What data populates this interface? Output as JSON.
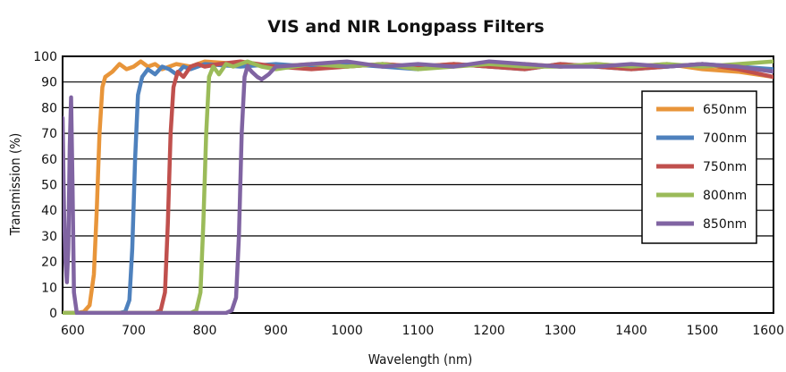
{
  "chart_data": {
    "type": "line",
    "title": "VIS and NIR Longpass Filters",
    "xlabel": "Wavelength (nm)",
    "ylabel": "Transmission (%)",
    "xlim": [
      600,
      1600
    ],
    "ylim": [
      0,
      100
    ],
    "xticks": [
      600,
      700,
      800,
      900,
      1000,
      1100,
      1200,
      1300,
      1400,
      1500,
      1600
    ],
    "xtick_labels": [
      "600",
      "700",
      "800",
      "900",
      "1000",
      "1100",
      "1200",
      "1300",
      "1400",
      "1500",
      "1600"
    ],
    "yticks": [
      0,
      10,
      20,
      30,
      40,
      50,
      60,
      70,
      80,
      90,
      100
    ],
    "ytick_labels": [
      "0",
      "10",
      "20",
      "30",
      "40",
      "50",
      "60",
      "70",
      "80",
      "90",
      "100"
    ],
    "grid": "horizontal",
    "legend_position": "right",
    "series": [
      {
        "name": "650nm",
        "color": "#E8953A",
        "x": [
          600,
          620,
          630,
          638,
          644,
          648,
          652,
          656,
          660,
          670,
          680,
          690,
          700,
          710,
          720,
          730,
          740,
          760,
          780,
          800,
          850,
          900,
          950,
          1000,
          1050,
          1100,
          1150,
          1200,
          1250,
          1300,
          1350,
          1400,
          1450,
          1500,
          1550,
          1600
        ],
        "y": [
          0,
          0,
          0.5,
          3,
          15,
          40,
          70,
          88,
          92,
          94,
          97,
          95,
          96,
          98,
          96,
          97,
          95,
          97,
          96,
          98,
          97,
          96,
          97,
          96,
          97,
          96,
          97,
          96,
          97,
          96,
          97,
          96,
          97,
          95,
          94,
          92
        ]
      },
      {
        "name": "700nm",
        "color": "#4E81BD",
        "x": [
          600,
          650,
          680,
          688,
          694,
          698,
          702,
          706,
          712,
          720,
          730,
          740,
          750,
          760,
          770,
          780,
          800,
          850,
          900,
          950,
          1000,
          1050,
          1100,
          1150,
          1200,
          1250,
          1300,
          1350,
          1400,
          1450,
          1500,
          1550,
          1600
        ],
        "y": [
          0,
          0,
          0,
          0.5,
          5,
          25,
          60,
          85,
          92,
          95,
          93,
          96,
          95,
          93,
          96,
          95,
          97,
          96,
          97,
          96,
          97,
          96,
          95,
          97,
          96,
          95,
          97,
          96,
          95,
          96,
          97,
          96,
          95
        ]
      },
      {
        "name": "750nm",
        "color": "#C0504D",
        "x": [
          600,
          700,
          730,
          738,
          744,
          748,
          752,
          756,
          762,
          770,
          780,
          790,
          800,
          820,
          850,
          900,
          950,
          1000,
          1050,
          1100,
          1150,
          1200,
          1250,
          1300,
          1350,
          1400,
          1450,
          1500,
          1550,
          1600
        ],
        "y": [
          0,
          0,
          0,
          1,
          8,
          35,
          70,
          88,
          94,
          92,
          96,
          97,
          96,
          97,
          98,
          96,
          95,
          96,
          97,
          96,
          97,
          96,
          95,
          97,
          96,
          95,
          96,
          97,
          95,
          92
        ]
      },
      {
        "name": "800nm",
        "color": "#9BBB59",
        "x": [
          600,
          750,
          780,
          788,
          794,
          798,
          802,
          806,
          812,
          820,
          830,
          840,
          860,
          880,
          900,
          950,
          1000,
          1050,
          1100,
          1150,
          1200,
          1250,
          1300,
          1350,
          1400,
          1450,
          1500,
          1550,
          1600
        ],
        "y": [
          0,
          0,
          0,
          1,
          8,
          35,
          70,
          92,
          96,
          93,
          97,
          96,
          98,
          96,
          95,
          97,
          96,
          97,
          95,
          96,
          97,
          96,
          96,
          97,
          96,
          97,
          96,
          97,
          98
        ]
      },
      {
        "name": "850nm",
        "color": "#8064A2",
        "x": [
          600,
          602,
          604,
          606,
          608,
          610,
          612,
          614,
          616,
          620,
          640,
          800,
          830,
          838,
          844,
          848,
          852,
          856,
          860,
          866,
          874,
          880,
          890,
          900,
          950,
          1000,
          1050,
          1100,
          1150,
          1200,
          1250,
          1300,
          1350,
          1400,
          1450,
          1500,
          1550,
          1600
        ],
        "y": [
          76,
          40,
          20,
          12,
          25,
          65,
          84,
          50,
          8,
          0,
          0,
          0,
          0,
          1,
          6,
          30,
          70,
          92,
          96,
          94,
          92,
          91,
          93,
          96,
          97,
          98,
          96,
          97,
          96,
          98,
          97,
          96,
          96,
          97,
          96,
          97,
          96,
          94
        ]
      }
    ]
  }
}
